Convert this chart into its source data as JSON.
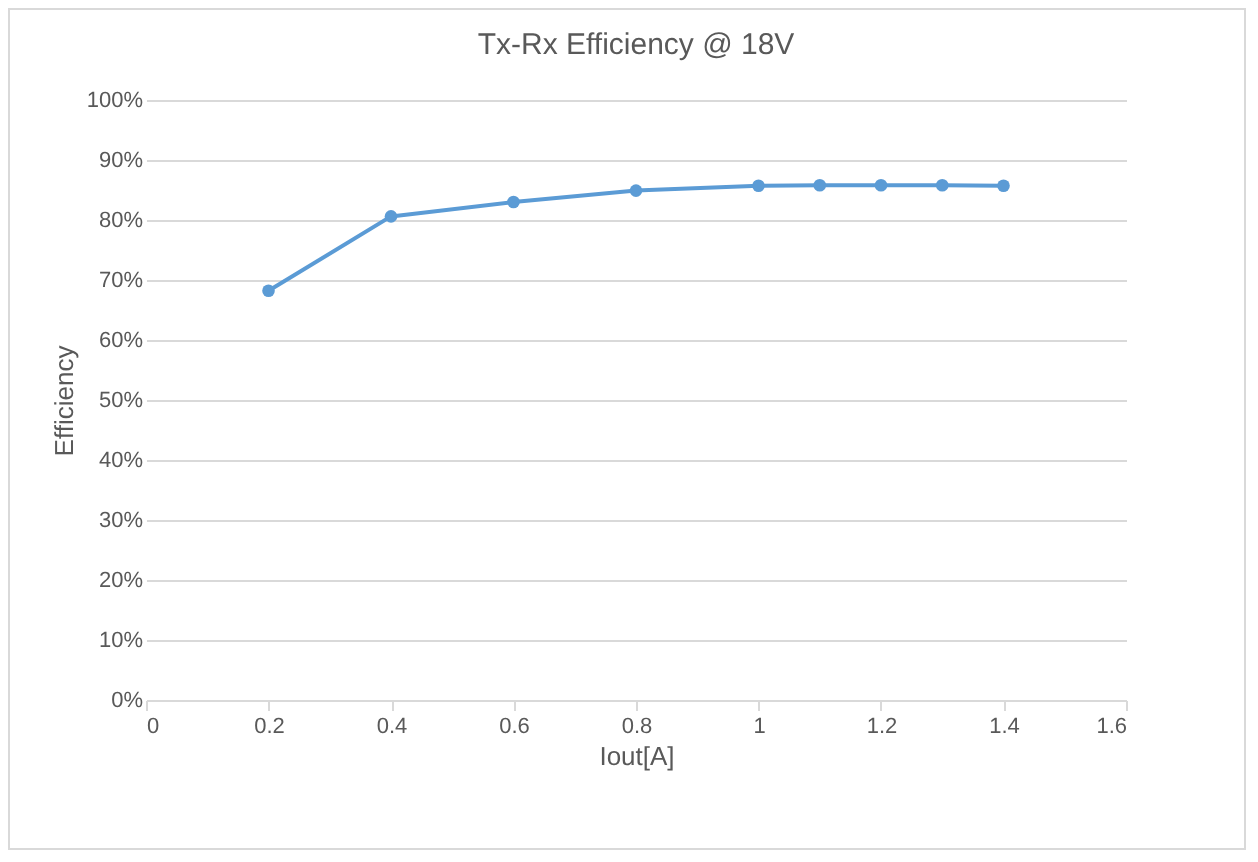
{
  "chart_data": {
    "type": "line",
    "title": "Tx-Rx Efficiency @ 18V",
    "xlabel": "Iout[A]",
    "ylabel": "Efficiency",
    "x": [
      0.2,
      0.4,
      0.6,
      0.8,
      1.0,
      1.1,
      1.2,
      1.3,
      1.4
    ],
    "series": [
      {
        "color": "#5b9bd5",
        "values": [
          68.2,
          80.6,
          83.0,
          84.9,
          85.7,
          85.8,
          85.8,
          85.8,
          85.7
        ]
      }
    ],
    "xlim": [
      0,
      1.6
    ],
    "xticks": [
      0,
      0.2,
      0.4,
      0.6,
      0.8,
      1,
      1.2,
      1.4,
      1.6
    ],
    "ylim": [
      0,
      100
    ],
    "yticks": [
      {
        "value": 0,
        "label": "0%"
      },
      {
        "value": 10,
        "label": "10%"
      },
      {
        "value": 20,
        "label": "20%"
      },
      {
        "value": 30,
        "label": "30%"
      },
      {
        "value": 40,
        "label": "40%"
      },
      {
        "value": 50,
        "label": "50%"
      },
      {
        "value": 60,
        "label": "60%"
      },
      {
        "value": 70,
        "label": "70%"
      },
      {
        "value": 80,
        "label": "80%"
      },
      {
        "value": 90,
        "label": "90%"
      },
      {
        "value": 100,
        "label": "100%"
      }
    ],
    "grid": "y",
    "marker": "circle",
    "line_style": "solid"
  }
}
